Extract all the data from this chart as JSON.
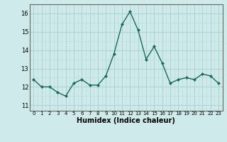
{
  "x": [
    0,
    1,
    2,
    3,
    4,
    5,
    6,
    7,
    8,
    9,
    10,
    11,
    12,
    13,
    14,
    15,
    16,
    17,
    18,
    19,
    20,
    21,
    22,
    23
  ],
  "y": [
    12.4,
    12.0,
    12.0,
    11.7,
    11.5,
    12.2,
    12.4,
    12.1,
    12.1,
    12.6,
    13.8,
    15.4,
    16.1,
    15.1,
    13.5,
    14.2,
    13.3,
    12.2,
    12.4,
    12.5,
    12.4,
    12.7,
    12.6,
    12.2
  ],
  "line_color": "#1a6b5a",
  "marker": "D",
  "markersize": 2.2,
  "linewidth": 1.0,
  "bg_color": "#ceeaea",
  "grid_major_color": "#aed4d4",
  "grid_minor_color": "#bedddd",
  "xlabel": "Humidex (Indice chaleur)",
  "xlabel_fontsize": 7,
  "xlabel_fontweight": "bold",
  "xtick_labels": [
    "0",
    "1",
    "2",
    "3",
    "4",
    "5",
    "6",
    "7",
    "8",
    "9",
    "10",
    "11",
    "12",
    "13",
    "14",
    "15",
    "16",
    "17",
    "18",
    "19",
    "20",
    "21",
    "22",
    "23"
  ],
  "ytick_labels": [
    "11",
    "12",
    "13",
    "14",
    "15",
    "16"
  ],
  "ylim": [
    10.7,
    16.5
  ],
  "xlim": [
    -0.5,
    23.5
  ]
}
